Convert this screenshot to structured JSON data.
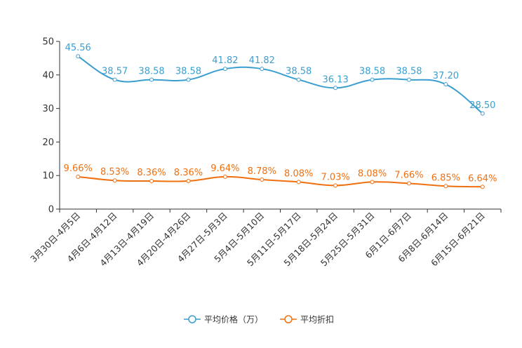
{
  "chart_data": {
    "type": "line",
    "categories": [
      "3月30日-4月5日",
      "4月6日-4月12日",
      "4月13日-4月19日",
      "4月20日-4月26日",
      "4月27日-5月3日",
      "5月4日-5月10日",
      "5月11日-5月17日",
      "5月18日-5月24日",
      "5月25日-5月31日",
      "6月1日-6月7日",
      "6月8日-6月14日",
      "6月15日-6月21日"
    ],
    "series": [
      {
        "name": "平均价格（万）",
        "color": "#3a9fd0",
        "values": [
          45.56,
          38.57,
          38.58,
          38.58,
          41.82,
          41.82,
          38.58,
          36.13,
          38.58,
          38.58,
          37.2,
          28.5
        ],
        "labels": [
          "45.56",
          "38.57",
          "38.58",
          "38.58",
          "41.82",
          "41.82",
          "38.58",
          "36.13",
          "38.58",
          "38.58",
          "37.20",
          "28.50"
        ]
      },
      {
        "name": "平均折扣",
        "color": "#f07010",
        "values": [
          9.66,
          8.53,
          8.36,
          8.36,
          9.64,
          8.78,
          8.08,
          7.03,
          8.08,
          7.66,
          6.85,
          6.64
        ],
        "labels": [
          "9.66%",
          "8.53%",
          "8.36%",
          "8.36%",
          "9.64%",
          "8.78%",
          "8.08%",
          "7.03%",
          "8.08%",
          "7.66%",
          "6.85%",
          "6.64%"
        ]
      }
    ],
    "ylim": [
      0,
      50
    ],
    "yticks": [
      0,
      10,
      20,
      30,
      40,
      50
    ],
    "smooth": true,
    "legend_position": "bottom-center",
    "title": "",
    "xlabel": "",
    "ylabel": ""
  }
}
